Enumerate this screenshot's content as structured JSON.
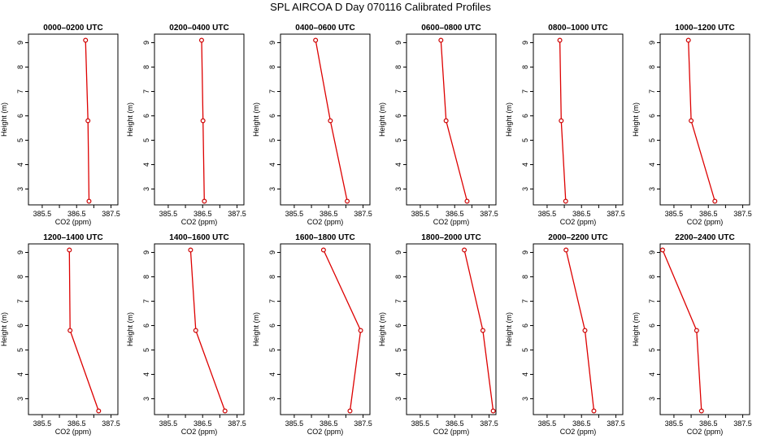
{
  "title": "SPL AIRCOA D  Day 070116  Calibrated Profiles",
  "colors": {
    "series": "#dd0000",
    "point": "#cc0000",
    "frame": "#000000"
  },
  "chart_data": {
    "type": "line",
    "xlabel": "CO2 (ppm)",
    "ylabel": "Height (m)",
    "xlim": [
      385.1,
      387.7
    ],
    "ylim": [
      2.35,
      9.35
    ],
    "xticks": [
      385.5,
      386.0,
      386.5,
      387.0,
      387.5
    ],
    "xtick_labels": [
      "385.5",
      "",
      "386.5",
      "",
      "387.5"
    ],
    "yticks": [
      3,
      4,
      5,
      6,
      7,
      8,
      9
    ],
    "ytick_labels": [
      "3",
      "4",
      "5",
      "6",
      "7",
      "8",
      "9"
    ],
    "heights": [
      9.1,
      5.8,
      2.5
    ],
    "panels": [
      {
        "title": "0000–0200 UTC",
        "co2": [
          386.76,
          386.83,
          386.86
        ]
      },
      {
        "title": "0200–0400 UTC",
        "co2": [
          386.47,
          386.51,
          386.55
        ]
      },
      {
        "title": "0400–0600 UTC",
        "co2": [
          386.12,
          386.55,
          387.04
        ]
      },
      {
        "title": "0600–0800 UTC",
        "co2": [
          386.1,
          386.25,
          386.86
        ]
      },
      {
        "title": "0800–1000 UTC",
        "co2": [
          385.87,
          385.91,
          386.04
        ]
      },
      {
        "title": "1000–1200 UTC",
        "co2": [
          385.92,
          386.0,
          386.69
        ]
      },
      {
        "title": "1200–1400 UTC",
        "co2": [
          386.29,
          386.31,
          387.14
        ]
      },
      {
        "title": "1400–1600 UTC",
        "co2": [
          386.15,
          386.3,
          387.15
        ]
      },
      {
        "title": "1600–1800 UTC",
        "co2": [
          386.35,
          387.43,
          387.12
        ]
      },
      {
        "title": "1800–2000 UTC",
        "co2": [
          386.78,
          387.32,
          387.62
        ]
      },
      {
        "title": "2000–2200 UTC",
        "co2": [
          386.05,
          386.6,
          386.86
        ]
      },
      {
        "title": "2200–2400 UTC",
        "co2": [
          385.17,
          386.16,
          386.3
        ]
      }
    ]
  }
}
